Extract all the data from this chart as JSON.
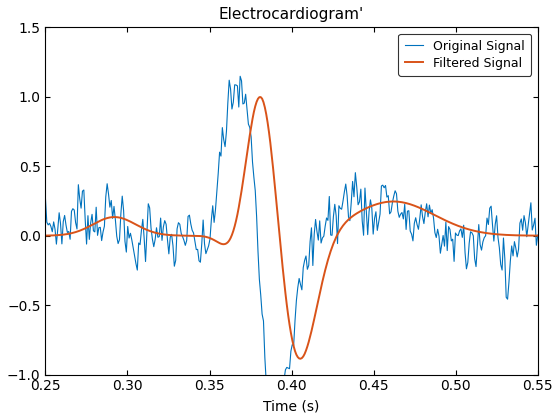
{
  "title": "Electrocardiogram'",
  "xlabel": "Time (s)",
  "ylabel": "",
  "xlim": [
    0.25,
    0.55
  ],
  "ylim": [
    -1.0,
    1.5
  ],
  "yticks": [
    -1.0,
    -0.5,
    0.0,
    0.5,
    1.0,
    1.5
  ],
  "xticks": [
    0.25,
    0.3,
    0.35,
    0.4,
    0.45,
    0.5,
    0.55
  ],
  "original_color": "#0072BD",
  "filtered_color": "#D95319",
  "original_label": "Original Signal",
  "filtered_label": "Filtered Signal",
  "original_linewidth": 0.8,
  "filtered_linewidth": 1.4,
  "legend_loc": "upper right",
  "figsize": [
    5.6,
    4.2
  ],
  "dpi": 100
}
